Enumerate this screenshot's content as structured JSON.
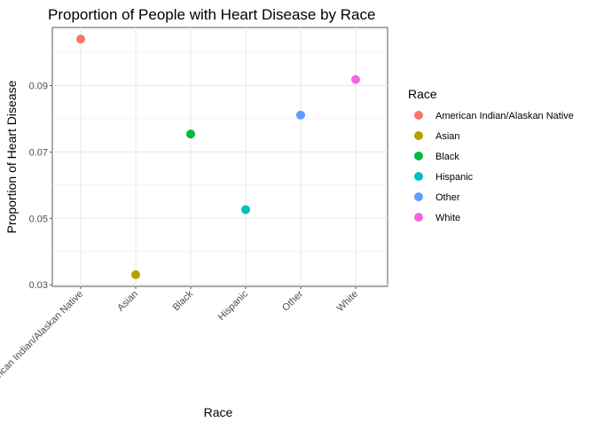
{
  "chart_data": {
    "type": "scatter",
    "title": "Proportion of People with Heart Disease by Race",
    "xlabel": "Race",
    "ylabel": "Proportion of Heart Disease",
    "categories": [
      "American Indian/Alaskan Native",
      "Asian",
      "Black",
      "Hispanic",
      "Other",
      "White"
    ],
    "values": [
      0.104,
      0.033,
      0.0754,
      0.0526,
      0.0811,
      0.0918
    ],
    "colors": [
      "#F8766D",
      "#B79F00",
      "#00BA38",
      "#00BFC4",
      "#619CFF",
      "#F564E3"
    ],
    "y_ticks": [
      0.03,
      0.05,
      0.07,
      0.09
    ],
    "y_tick_labels": [
      "0.03",
      "0.05",
      "0.07",
      "0.09"
    ],
    "ylim": [
      0.0295,
      0.1075
    ],
    "grid": true,
    "legend": {
      "title": "Race",
      "position": "right",
      "entries": [
        "American Indian/Alaskan Native",
        "Asian",
        "Black",
        "Hispanic",
        "Other",
        "White"
      ]
    }
  }
}
